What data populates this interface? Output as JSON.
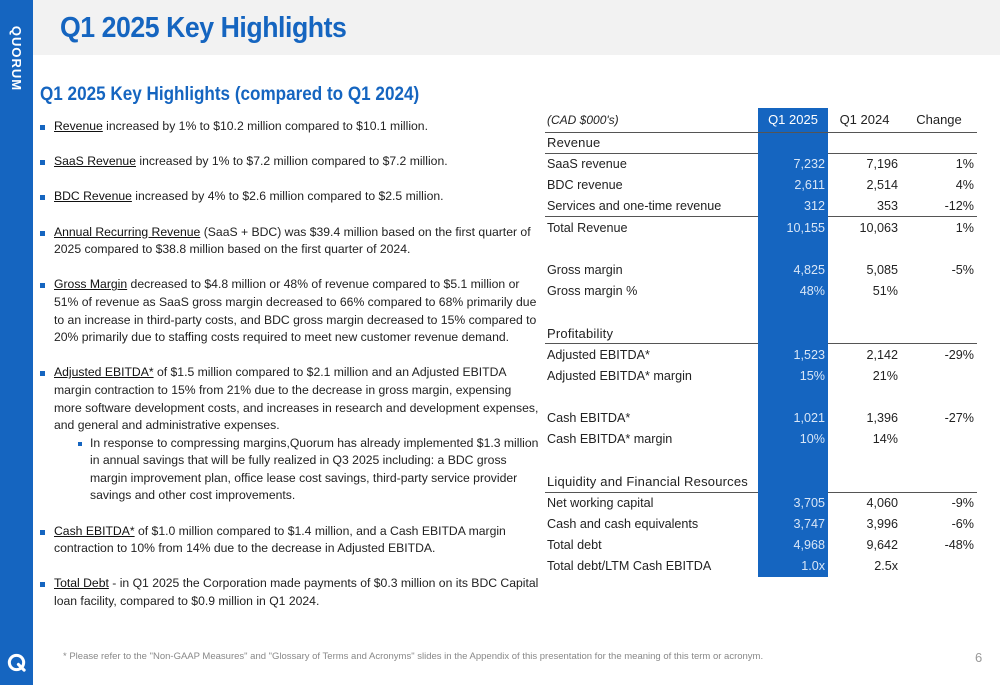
{
  "brand": {
    "name": "QUORUM",
    "primary_color": "#1565c0"
  },
  "page_title": "Q1 2025 Key Highlights",
  "section_title": "Q1 2025 Key Highlights (compared to Q1 2024)",
  "bullets": [
    {
      "lead": "Revenue",
      "text": " increased by 1% to $10.2 million compared to $10.1 million."
    },
    {
      "lead": "SaaS Revenue",
      "text": " increased by 1% to $7.2 million compared to $7.2 million."
    },
    {
      "lead": "BDC Revenue",
      "text": " increased by 4% to $2.6 million compared to $2.5 million."
    },
    {
      "lead": "Annual Recurring Revenue",
      "text": " (SaaS + BDC) was $39.4 million based on the first quarter of 2025 compared to $38.8 million based on the first quarter of 2024."
    },
    {
      "lead": "Gross Margin",
      "text": " decreased to $4.8 million or 48% of revenue compared to $5.1 million or 51% of revenue as SaaS gross margin decreased to 66% compared to 68% primarily due to an increase in third-party costs, and BDC gross margin decreased to 15% compared to 20% primarily due to staffing costs required to meet new customer revenue demand."
    },
    {
      "lead": "Adjusted EBITDA*",
      "text": " of $1.5 million compared to $2.1 million and an Adjusted EBITDA margin contraction to 15% from 21%  due to the decrease in gross margin, expensing more software development costs, and increases in research and development expenses, and general and administrative expenses.",
      "sub": "In response to compressing margins,Quorum has already implemented $1.3 million in annual savings that will be fully realized in Q3 2025 including: a BDC gross margin improvement plan, office lease cost savings, third-party service provider savings and other cost improvements."
    },
    {
      "lead": "Cash EBITDA*",
      "text": " of $1.0 million compared to $1.4 million, and a Cash EBITDA margin contraction to 10% from 14% due to the decrease in Adjusted EBITDA."
    },
    {
      "lead": "Total Debt",
      "text": " - in Q1 2025 the Corporation made payments of $0.3 million on its BDC Capital loan facility, compared to $0.9 million in Q1 2024."
    }
  ],
  "table": {
    "unit_label": "(CAD $000's)",
    "col_q1_2025": "Q1 2025",
    "col_q1_2024": "Q1 2024",
    "col_change": "Change",
    "rows": [
      {
        "label": "Revenue",
        "q1_2025": "",
        "q1_2024": "",
        "change": ""
      },
      {
        "label": "SaaS revenue",
        "q1_2025": "7,232",
        "q1_2024": "7,196",
        "change": "1%"
      },
      {
        "label": "BDC revenue",
        "q1_2025": "2,611",
        "q1_2024": "2,514",
        "change": "4%"
      },
      {
        "label": "Services and one-time revenue",
        "q1_2025": "312",
        "q1_2024": "353",
        "change": "-12%"
      },
      {
        "label": "Total Revenue",
        "q1_2025": "10,155",
        "q1_2024": "10,063",
        "change": "1%"
      },
      {
        "label": "",
        "q1_2025": "",
        "q1_2024": "",
        "change": ""
      },
      {
        "label": "Gross margin",
        "q1_2025": "4,825",
        "q1_2024": "5,085",
        "change": "-5%"
      },
      {
        "label": "Gross margin %",
        "q1_2025": "48%",
        "q1_2024": "51%",
        "change": ""
      },
      {
        "label": "",
        "q1_2025": "",
        "q1_2024": "",
        "change": ""
      },
      {
        "label": "Profitability",
        "q1_2025": "",
        "q1_2024": "",
        "change": ""
      },
      {
        "label": "Adjusted EBITDA*",
        "q1_2025": "1,523",
        "q1_2024": "2,142",
        "change": "-29%"
      },
      {
        "label": "Adjusted EBITDA* margin",
        "q1_2025": "15%",
        "q1_2024": "21%",
        "change": ""
      },
      {
        "label": "",
        "q1_2025": "",
        "q1_2024": "",
        "change": ""
      },
      {
        "label": "Cash EBITDA*",
        "q1_2025": "1,021",
        "q1_2024": "1,396",
        "change": "-27%"
      },
      {
        "label": "Cash EBITDA* margin",
        "q1_2025": "10%",
        "q1_2024": "14%",
        "change": ""
      },
      {
        "label": "",
        "q1_2025": "",
        "q1_2024": "",
        "change": ""
      },
      {
        "label": "Liquidity and Financial Resources",
        "q1_2025": "",
        "q1_2024": "",
        "change": ""
      },
      {
        "label": "Net working capital",
        "q1_2025": "3,705",
        "q1_2024": "4,060",
        "change": "-9%"
      },
      {
        "label": "Cash and cash equivalents",
        "q1_2025": "3,747",
        "q1_2024": "3,996",
        "change": "-6%"
      },
      {
        "label": "Total debt",
        "q1_2025": "4,968",
        "q1_2024": "9,642",
        "change": "-48%"
      },
      {
        "label": "Total debt/LTM Cash EBITDA",
        "q1_2025": "1.0x",
        "q1_2024": "2.5x",
        "change": ""
      }
    ]
  },
  "footnote": "* Please refer to the \"Non-GAAP Measures\" and \"Glossary of Terms and Acronyms\"  slides in the Appendix of this presentation for the meaning of this term or acronym.",
  "page_number": "6"
}
